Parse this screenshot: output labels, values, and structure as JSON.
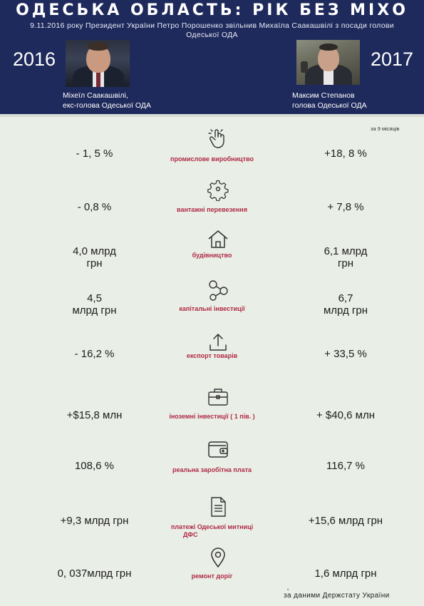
{
  "header": {
    "title": "ОДЕСЬКА ОБЛАСТЬ: РІК БЕЗ МІХО",
    "subtitle": "9.11.2016 року Президент України Петро Порошенко звільнив Михаїла Саакашвілі з посади голови Одеської ОДА",
    "year_left": "2016",
    "year_right": "2017",
    "left_caption_1": "Міхеїл Саакашвілі,",
    "left_caption_2": "екс-голова Одеської ОДА",
    "right_caption_1": "Максим Степанов",
    "right_caption_2": "голова Одеської ОДА"
  },
  "note_months": "за 9 місяців",
  "rows": [
    {
      "icon": "touch-hand-icon",
      "label": "промислове виробництво",
      "left": "- 1, 5 %",
      "right": "+18, 8 %"
    },
    {
      "icon": "gear-icon",
      "label": "вантажні перевезення",
      "left": "- 0,8 %",
      "right": "+ 7,8 %"
    },
    {
      "icon": "house-icon",
      "label": "будівництво",
      "left_1": "4,0 млрд",
      "left_2": "грн",
      "right_1": "6,1 млрд",
      "right_2": "грн"
    },
    {
      "icon": "molecule-icon",
      "label": "капітальні інвестиції",
      "left_1": "4,5",
      "left_2": "млрд грн",
      "right_1": "6,7",
      "right_2": "млрд грн"
    },
    {
      "icon": "upload-icon",
      "label": "експорт товарів",
      "left": "- 16,2 %",
      "right": "+ 33,5 %"
    },
    {
      "icon": "briefcase-icon",
      "label": "іноземні інвестиції ( 1 пів. )",
      "left": "+$15,8 млн",
      "right": "+ $40,6 млн"
    },
    {
      "icon": "wallet-icon",
      "label": "реальна заробітна плата",
      "left": "108,6 %",
      "right": "116,7 %"
    },
    {
      "icon": "document-icon",
      "label_1": "платежі Одеської митниці",
      "label_2": "ДФС",
      "left": "+9,3 млрд грн",
      "right": "+15,6 млрд грн"
    },
    {
      "icon": "map-pin-icon",
      "label": "ремонт доріг",
      "left": "0, 037млрд грн",
      "right": "1,6 млрд грн"
    }
  ],
  "source": "за даними Держстату України",
  "colors": {
    "header_bg": "#1f2a5c",
    "label_red": "#b02a45",
    "page_bg": "#e9eee6"
  }
}
